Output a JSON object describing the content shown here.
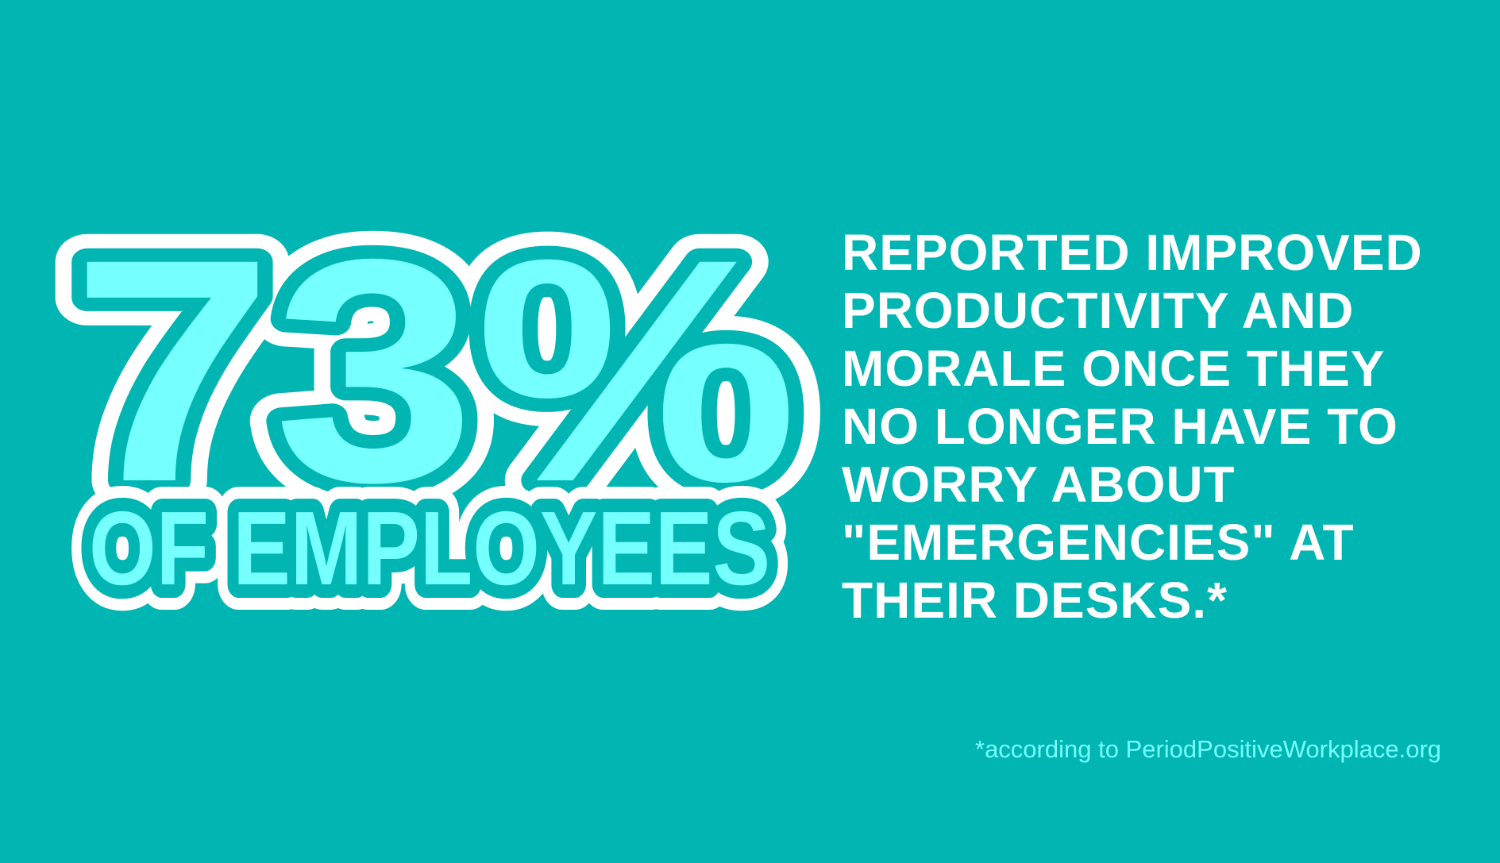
{
  "stat": {
    "value": "73%",
    "subject": "OF EMPLOYEES"
  },
  "claim_lines": [
    "REPORTED IMPROVED",
    "PRODUCTIVITY AND",
    "MORALE ONCE THEY",
    "NO LONGER HAVE TO",
    "WORRY ABOUT",
    "\"EMERGENCIES\" AT",
    "THEIR DESKS.*"
  ],
  "footnote": "*according to PeriodPositiveWorkplace.org",
  "colors": {
    "background": "#00b5b2",
    "highlight": "#75ffff",
    "outline": "#ffffff",
    "text": "#ffffff"
  }
}
